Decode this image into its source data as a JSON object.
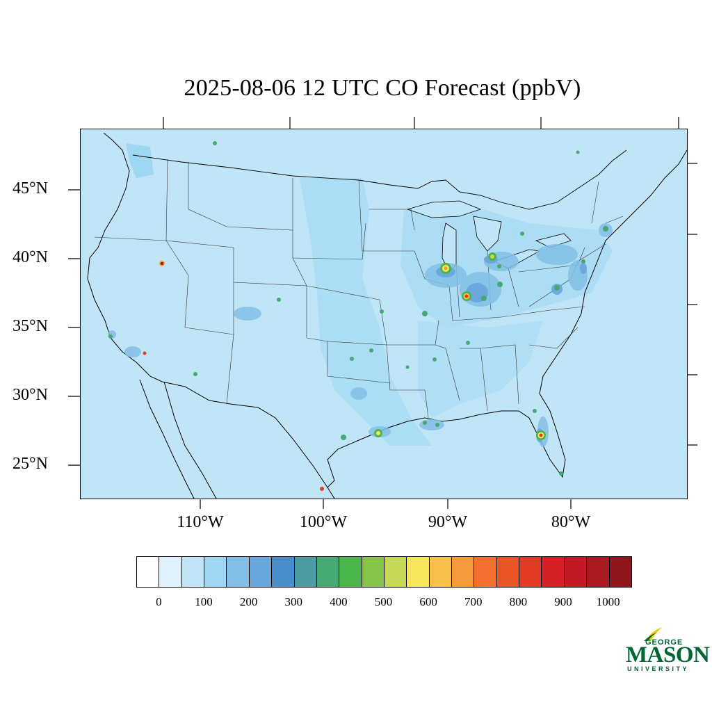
{
  "title": "2025-08-06 12 UTC CO Forecast (ppbV)",
  "map": {
    "lat_labels": [
      "45°N",
      "40°N",
      "35°N",
      "30°N",
      "25°N"
    ],
    "lon_labels": [
      "110°W",
      "100°W",
      "90°W",
      "80°W"
    ],
    "ocean_color": "#bfe5f7",
    "background_field_color": "#bfe5f7"
  },
  "colorbar": {
    "colors": [
      "#ffffff",
      "#dff2fb",
      "#bfe5f7",
      "#9fd7f3",
      "#82bfe6",
      "#68a6dc",
      "#4a8dcb",
      "#4b9ba0",
      "#46a873",
      "#4ab54a",
      "#86c54a",
      "#c4d855",
      "#f6e65b",
      "#f7c04a",
      "#f69a3e",
      "#f26f2f",
      "#ea5528",
      "#e23b25",
      "#d62028",
      "#c31b25",
      "#aa1a21",
      "#8e161c"
    ],
    "tick_labels": [
      "0",
      "100",
      "200",
      "300",
      "400",
      "500",
      "600",
      "700",
      "800",
      "900",
      "1000"
    ]
  },
  "logo": {
    "line1": "GEORGE",
    "line2": "MASON",
    "line3": "UNIVERSITY",
    "color": "#006633",
    "accent": "#f1c400"
  },
  "hotspots": [
    {
      "name": "chicago",
      "level": 700
    },
    {
      "name": "indianapolis",
      "level": 800
    },
    {
      "name": "tampa",
      "level": 800
    },
    {
      "name": "salt-lake",
      "level": 1000
    },
    {
      "name": "detroit",
      "level": 500
    },
    {
      "name": "houston",
      "level": 500
    },
    {
      "name": "mexico-city-edge",
      "level": 900
    }
  ]
}
